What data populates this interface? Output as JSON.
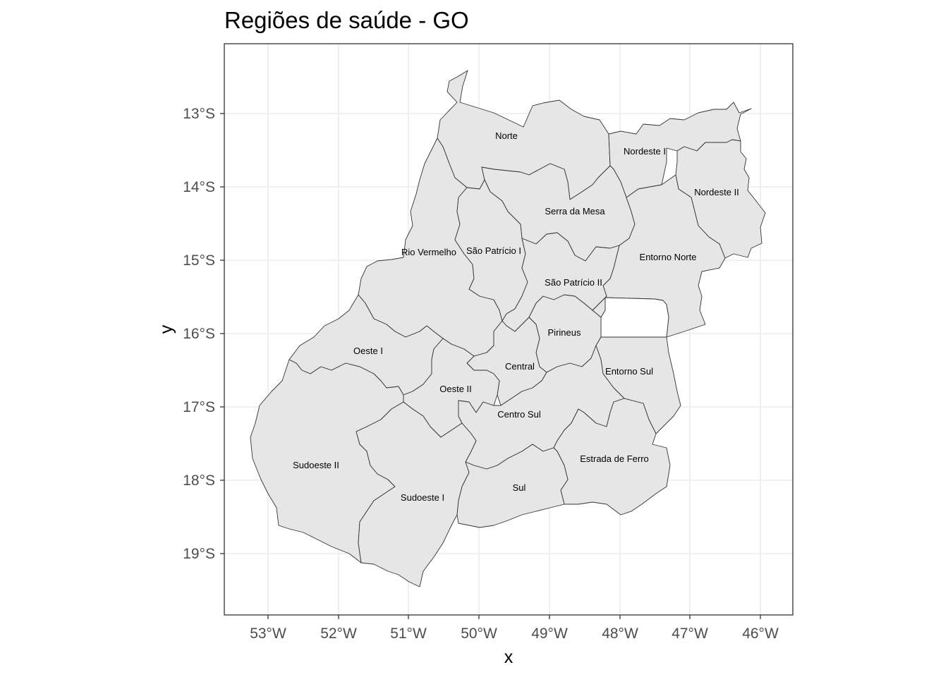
{
  "title": "Regiões de saúde - GO",
  "axes": {
    "xlabel": "x",
    "ylabel": "y",
    "x_ticks": [
      "53°W",
      "52°W",
      "51°W",
      "50°W",
      "49°W",
      "48°W",
      "47°W",
      "46°W"
    ],
    "y_ticks": [
      "13°S",
      "14°S",
      "15°S",
      "16°S",
      "17°S",
      "18°S",
      "19°S"
    ]
  },
  "regions": [
    {
      "id": "norte",
      "label": "Norte"
    },
    {
      "id": "nordeste-i",
      "label": "Nordeste I"
    },
    {
      "id": "nordeste-ii",
      "label": "Nordeste II"
    },
    {
      "id": "serra-da-mesa",
      "label": "Serra da Mesa"
    },
    {
      "id": "rio-vermelho",
      "label": "Rio Vermelho"
    },
    {
      "id": "sao-patricio-i",
      "label": "São Patrício I"
    },
    {
      "id": "entorno-norte",
      "label": "Entorno Norte"
    },
    {
      "id": "sao-patricio-ii",
      "label": "São Patrício II"
    },
    {
      "id": "pirineus",
      "label": "Pirineus"
    },
    {
      "id": "oeste-i",
      "label": "Oeste I"
    },
    {
      "id": "central",
      "label": "Central"
    },
    {
      "id": "entorno-sul",
      "label": "Entorno Sul"
    },
    {
      "id": "oeste-ii",
      "label": "Oeste II"
    },
    {
      "id": "centro-sul",
      "label": "Centro Sul"
    },
    {
      "id": "estrada-de-ferro",
      "label": "Estrada de Ferro"
    },
    {
      "id": "sudoeste-ii",
      "label": "Sudoeste II"
    },
    {
      "id": "sudoeste-i",
      "label": "Sudoeste I"
    },
    {
      "id": "sul",
      "label": "Sul"
    }
  ],
  "colors": {
    "fill": "#e6e6e6",
    "border": "#333333",
    "grid": "#ebebeb",
    "panel_border": "#333333"
  }
}
